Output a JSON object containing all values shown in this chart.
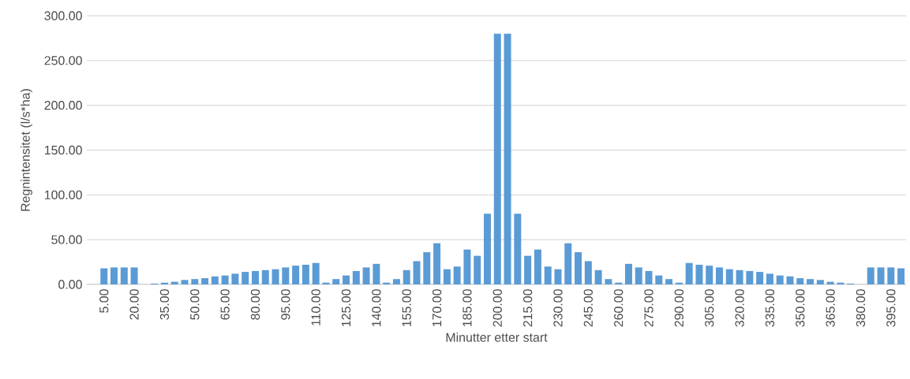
{
  "chart_data": {
    "type": "bar",
    "xlabel": "Minutter etter start",
    "ylabel": "Regnintensitet (l/s*ha)",
    "color": "#5b9bd5",
    "grid": "y",
    "categories": [
      "5.00",
      null,
      null,
      "20.00",
      null,
      null,
      "35.00",
      null,
      null,
      "50.00",
      null,
      null,
      "65.00",
      null,
      null,
      "80.00",
      null,
      null,
      "95.00",
      null,
      null,
      "110.00",
      null,
      null,
      "125.00",
      null,
      null,
      "140.00",
      null,
      null,
      "155.00",
      null,
      null,
      "170.00",
      null,
      null,
      "185.00",
      null,
      null,
      "200.00",
      null,
      null,
      "215.00",
      null,
      null,
      "230.00",
      null,
      null,
      "245.00",
      null,
      null,
      "260.00",
      null,
      null,
      "275.00",
      null,
      null,
      "290.00",
      null,
      null,
      "305.00",
      null,
      null,
      "320.00",
      null,
      null,
      "335.00",
      null,
      null,
      "350.00",
      null,
      null,
      "365.00",
      null,
      null,
      "380.00",
      null,
      null,
      "395.00",
      null
    ],
    "values": [
      18,
      19,
      19,
      19,
      0,
      1,
      2,
      3,
      5,
      6,
      7,
      9,
      10,
      12,
      14,
      15,
      16,
      17,
      19,
      21,
      22,
      24,
      2,
      6,
      10,
      15,
      19,
      23,
      2,
      6,
      16,
      26,
      36,
      46,
      17,
      20,
      39,
      32,
      79,
      280,
      280,
      79,
      32,
      39,
      20,
      17,
      46,
      36,
      26,
      16,
      6,
      2,
      23,
      19,
      15,
      10,
      6,
      2,
      24,
      22,
      21,
      19,
      17,
      16,
      15,
      14,
      12,
      10,
      9,
      7,
      6,
      5,
      3,
      2,
      1,
      0,
      19,
      19,
      19,
      18
    ],
    "ylim": [
      0,
      300
    ],
    "yticks": [
      {
        "value": 0,
        "label": "0.00"
      },
      {
        "value": 50,
        "label": "50.00"
      },
      {
        "value": 100,
        "label": "100.00"
      },
      {
        "value": 150,
        "label": "150.00"
      },
      {
        "value": 200,
        "label": "200.00"
      },
      {
        "value": 250,
        "label": "250.00"
      },
      {
        "value": 300,
        "label": "300.00"
      }
    ]
  }
}
